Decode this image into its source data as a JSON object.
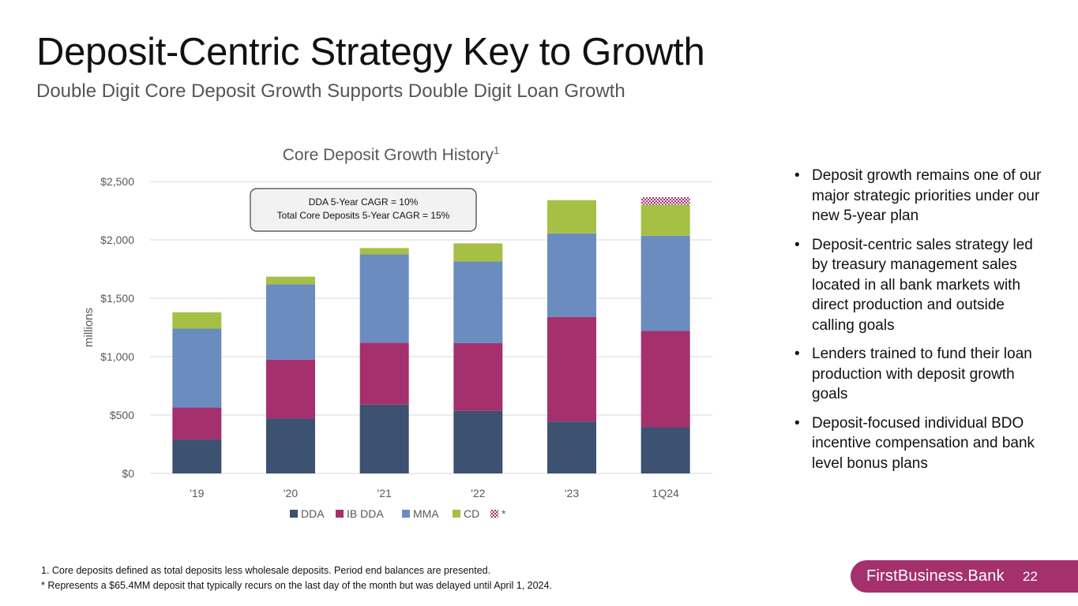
{
  "slide": {
    "title": "Deposit-Centric Strategy Key to Growth",
    "subtitle": "Double Digit Core Deposit Growth Supports Double Digit Loan Growth",
    "page_number": "22"
  },
  "brand": {
    "name": "FirstBusiness.Bank",
    "color": "#a4306e"
  },
  "chart_data": {
    "type": "bar",
    "stacked": true,
    "title": "Core Deposit Growth History",
    "title_superscript": "1",
    "xlabel": "",
    "ylabel": "millions",
    "ylim": [
      0,
      2500
    ],
    "yticks": [
      0,
      500,
      1000,
      1500,
      2000,
      2500
    ],
    "ytick_labels": [
      "$0",
      "$500",
      "$1,000",
      "$1,500",
      "$2,000",
      "$2,500"
    ],
    "grid": true,
    "categories": [
      "'19",
      "'20",
      "'21",
      "'22",
      "'23",
      "1Q24"
    ],
    "series": [
      {
        "name": "DDA",
        "color": "#3d5170",
        "values": [
          290,
          470,
          590,
          535,
          445,
          395
        ]
      },
      {
        "name": "IB DDA",
        "color": "#a4306e",
        "values": [
          275,
          505,
          530,
          580,
          895,
          825
        ]
      },
      {
        "name": "MMA",
        "color": "#6a8cbf",
        "values": [
          675,
          645,
          755,
          700,
          715,
          815
        ]
      },
      {
        "name": "CD",
        "color": "#a6bf45",
        "values": [
          140,
          65,
          55,
          155,
          285,
          265
        ]
      },
      {
        "name": "*",
        "color": "#a4306e",
        "pattern": "dots",
        "values": [
          0,
          0,
          0,
          0,
          0,
          65
        ]
      }
    ],
    "legend_position": "bottom",
    "annotation": {
      "line1": "DDA 5-Year CAGR = 10%",
      "line2": "Total Core Deposits 5-Year CAGR = 15%"
    }
  },
  "bullets": [
    {
      "marker": "•",
      "text": "Deposit growth remains one of our major strategic priorities under our new 5-year plan"
    },
    {
      "marker": "•",
      "text": "Deposit-centric sales strategy led by treasury management sales located in all bank markets with direct production and outside calling goals"
    },
    {
      "marker": "•",
      "text": "Lenders trained to fund their loan production with deposit growth goals"
    },
    {
      "marker": "•",
      "text": "Deposit-focused individual BDO incentive compensation and bank level bonus plans"
    }
  ],
  "footnotes": {
    "note1": "1.   Core deposits defined as total deposits less wholesale deposits. Period end balances are presented.",
    "note2": "* Represents a $65.4MM deposit that typically recurs on the last day of the month but was delayed until April 1, 2024."
  }
}
